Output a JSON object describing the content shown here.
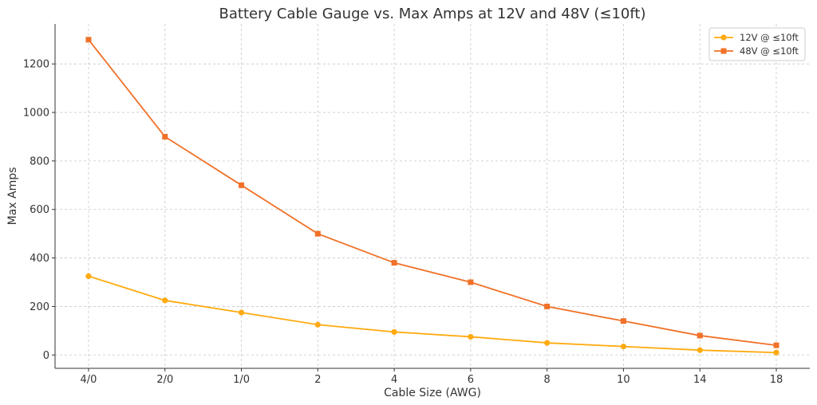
{
  "chart_data": {
    "type": "line",
    "title": "Battery Cable Gauge vs. Max Amps at 12V and 48V (≤10ft)",
    "xlabel": "Cable Size (AWG)",
    "ylabel": "Max Amps",
    "categories": [
      "4/0",
      "2/0",
      "1/0",
      "2",
      "4",
      "6",
      "8",
      "10",
      "14",
      "18"
    ],
    "ylim": [
      -55,
      1365
    ],
    "yticks": [
      0,
      200,
      400,
      600,
      800,
      1000,
      1200
    ],
    "grid": true,
    "legend_position": "top-right",
    "series": [
      {
        "name": "12V @ ≤10ft",
        "color": "#ffaa0e",
        "marker": "circle",
        "values": [
          325,
          225,
          175,
          125,
          95,
          75,
          50,
          35,
          20,
          10
        ]
      },
      {
        "name": "48V @ ≤10ft",
        "color": "#f07128",
        "marker": "square",
        "values": [
          1300,
          900,
          700,
          500,
          380,
          300,
          200,
          140,
          80,
          40
        ]
      }
    ]
  }
}
